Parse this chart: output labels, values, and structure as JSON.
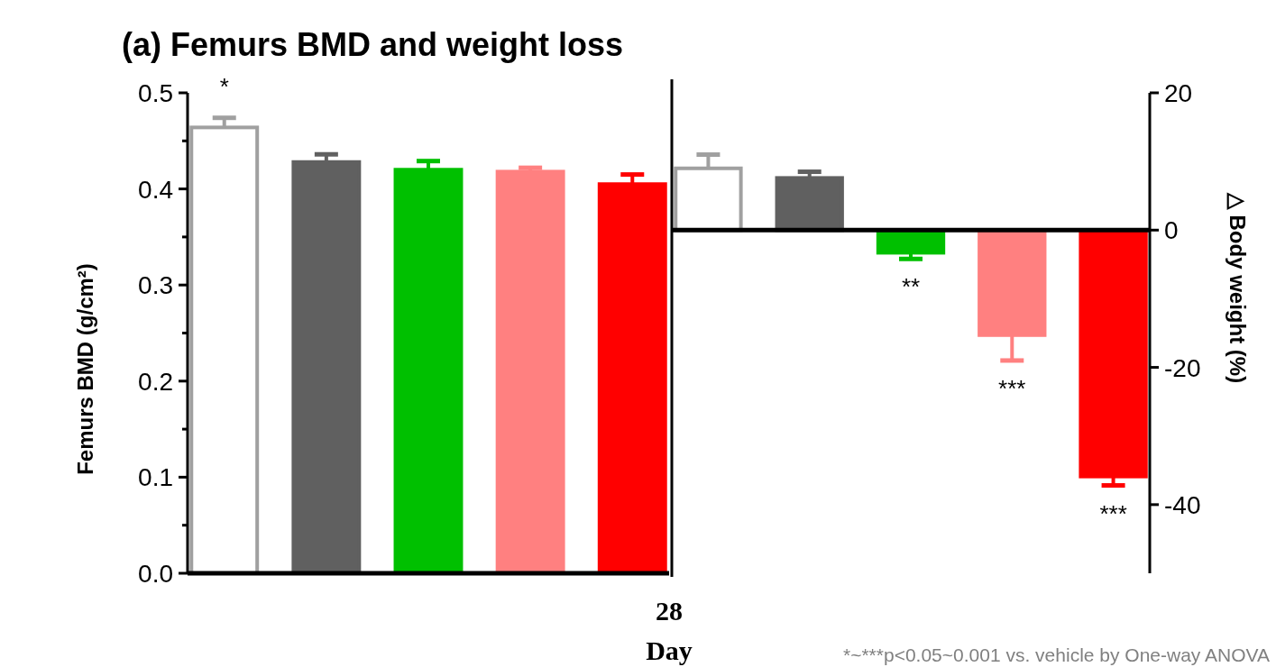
{
  "chart_data": [
    {
      "type": "bar",
      "title": "(a) Femurs BMD and weight loss",
      "ylabel": "Femurs BMD (g/cm²)",
      "xlabel": "Day",
      "annotations": [
        "28",
        "*~***p<0.05~0.001 vs. vehicle by One-way ANOVA"
      ],
      "categories": [
        null,
        null,
        null,
        null,
        null
      ],
      "values": [
        0.464,
        0.428,
        0.42,
        0.418,
        0.405
      ],
      "errors": [
        0.01,
        0.008,
        0.009,
        0.004,
        0.01
      ],
      "value_labels": [
        "*",
        null,
        null,
        null,
        null
      ],
      "colors": [
        "#ffffff",
        "#606060",
        "#00c000",
        "#ff8080",
        "#ff0000"
      ],
      "ylim": [
        0,
        0.5
      ],
      "yticks": [
        {
          "value": 0,
          "label": "0.0"
        },
        {
          "value": 0.05,
          "label": null
        },
        0.1,
        {
          "value": 0.15,
          "label": null
        },
        0.2,
        {
          "value": 0.25,
          "label": null
        },
        0.3,
        {
          "value": 0.35,
          "label": null
        },
        0.4,
        {
          "value": 0.45,
          "label": null
        },
        0.5
      ]
    },
    {
      "type": "bar",
      "ylabel": "△ Body weight (%)",
      "categories": [
        null,
        null,
        null,
        null,
        null
      ],
      "values": [
        9.0,
        7.6,
        -3.3,
        -15.3,
        -35.9
      ],
      "errors": [
        2.0,
        0.9,
        0.9,
        3.7,
        1.3
      ],
      "value_labels": [
        null,
        null,
        "**",
        "***",
        "***"
      ],
      "colors": [
        "#ffffff",
        "#606060",
        "#00c000",
        "#ff8080",
        "#ff0000"
      ],
      "ylim": [
        -50,
        20
      ],
      "yticks": [
        20,
        0,
        -20,
        -40
      ]
    }
  ]
}
